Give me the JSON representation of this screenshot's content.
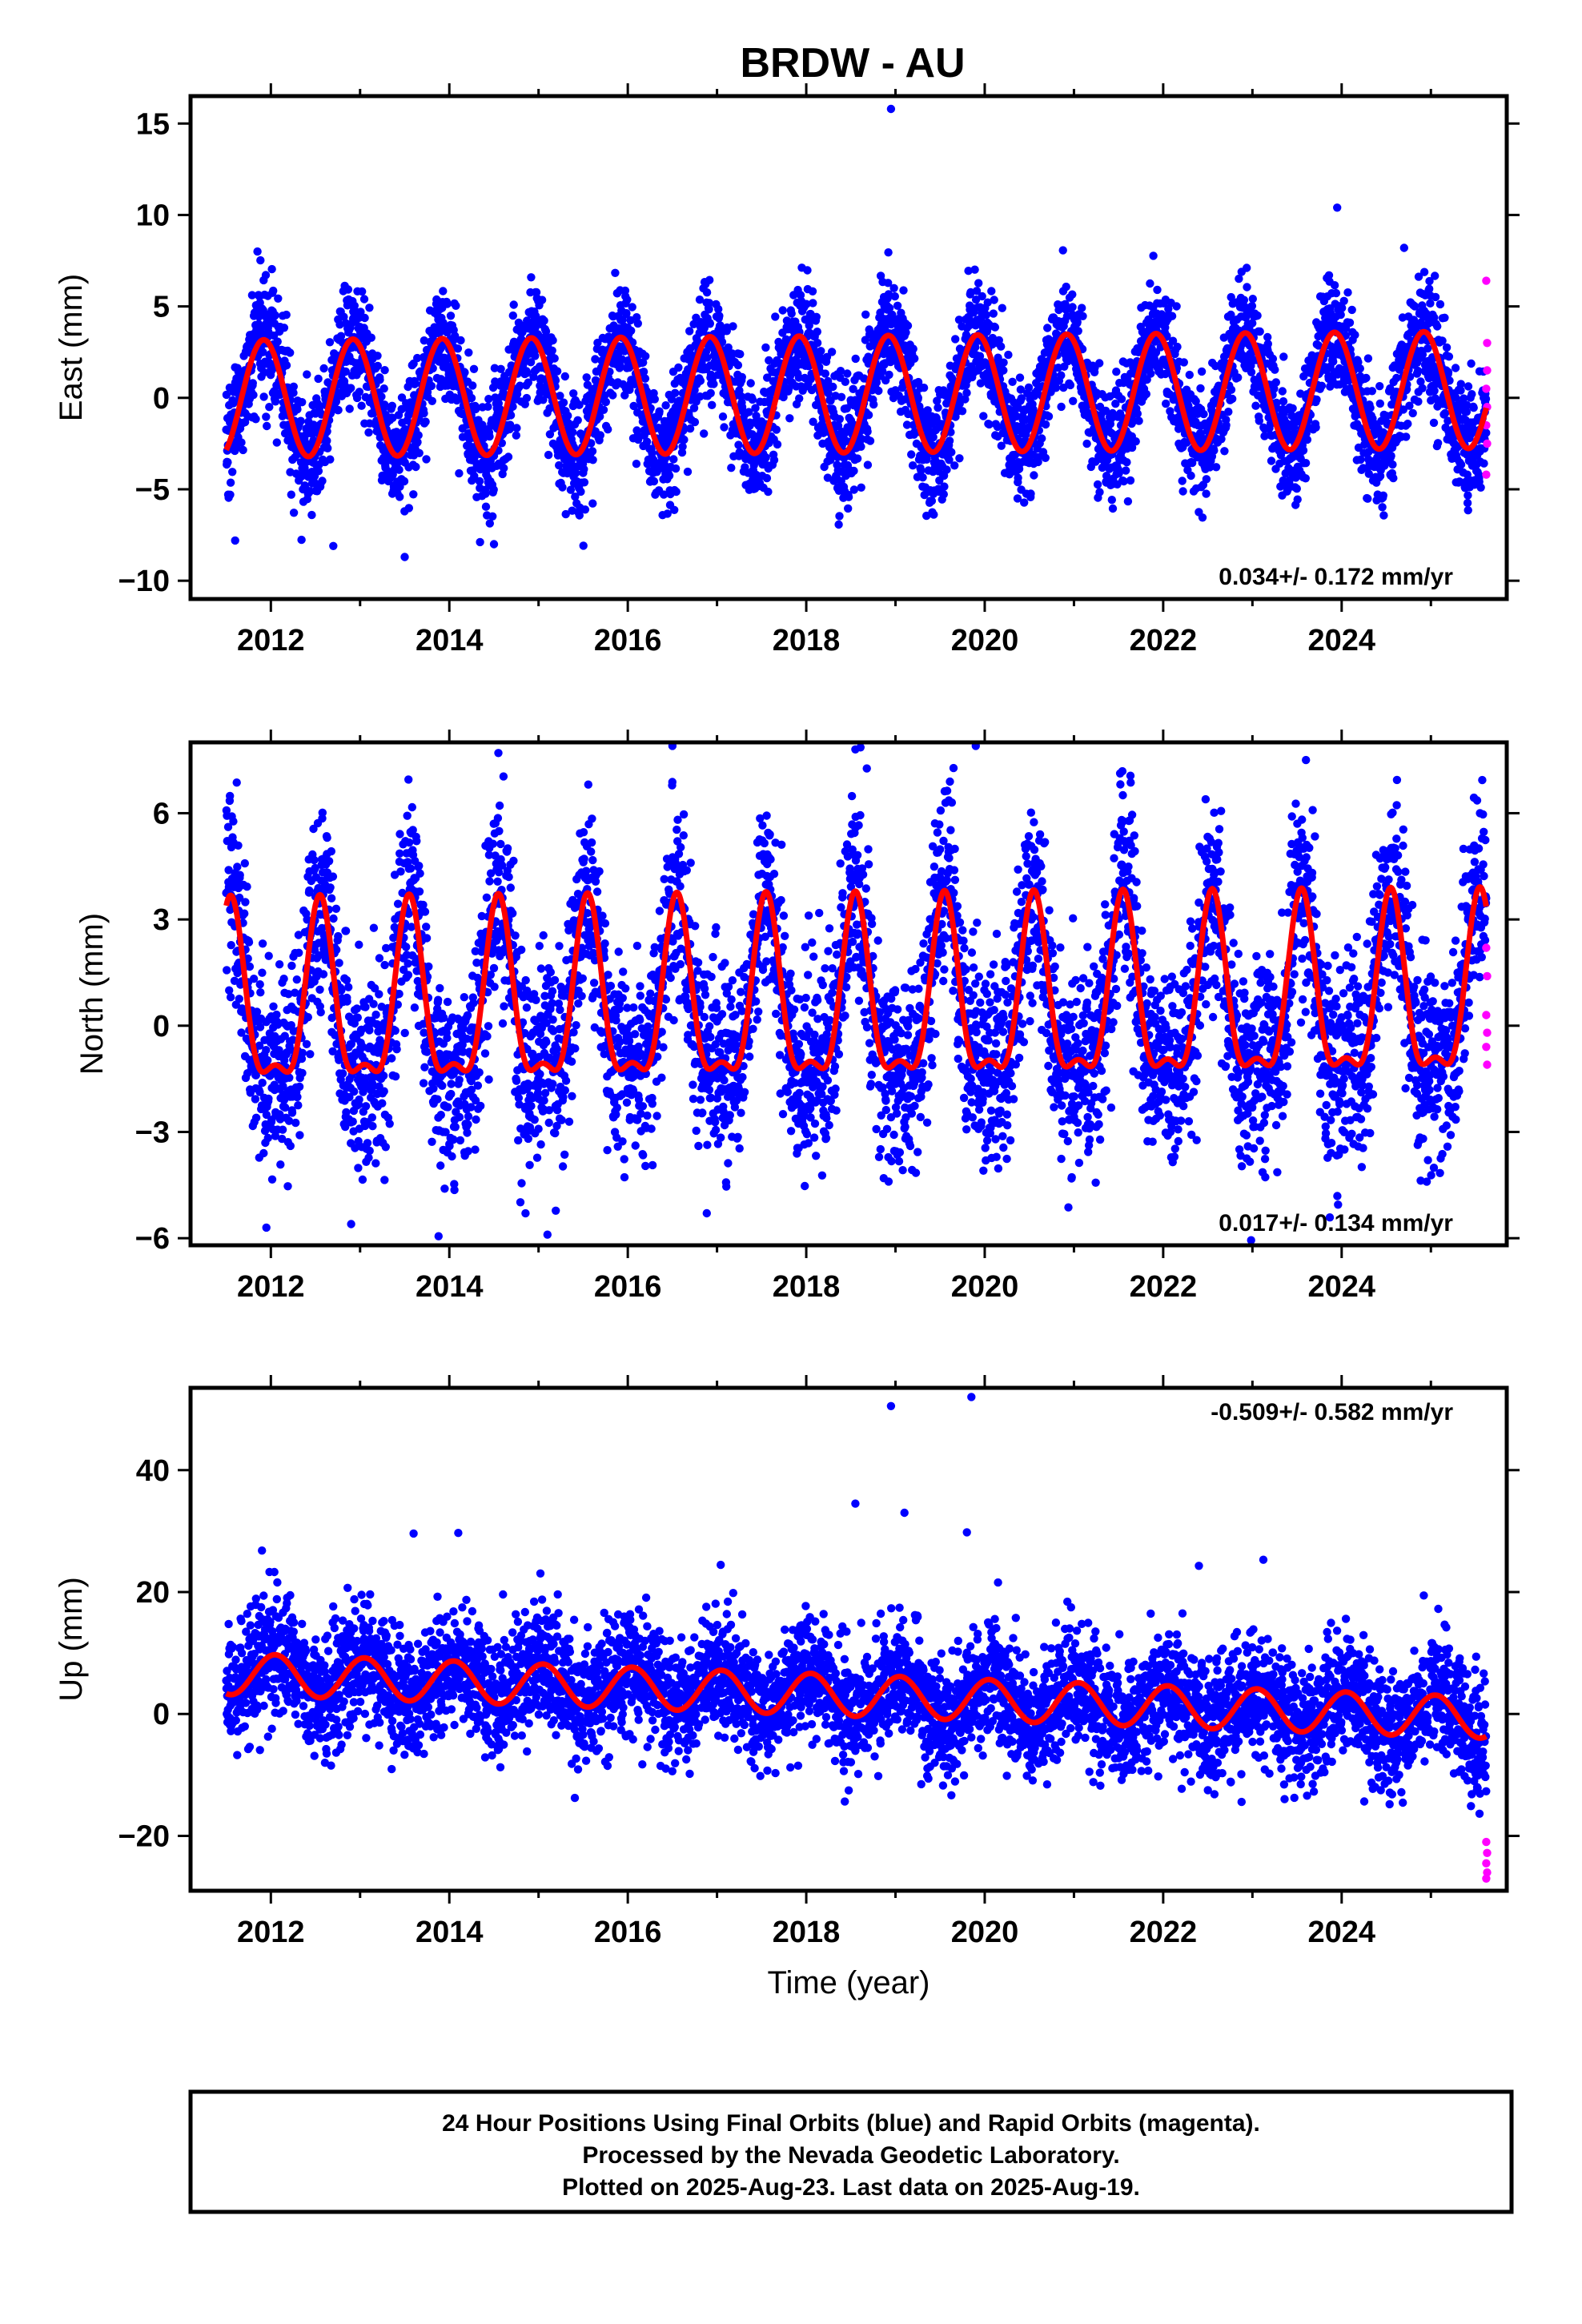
{
  "title": "BRDW - AU",
  "colors": {
    "final": "#0000ff",
    "rapid": "#ff00ff",
    "model": "#ff0000",
    "frame": "#000000"
  },
  "caption": {
    "line1": "24 Hour Positions Using Final Orbits (blue) and Rapid Orbits (magenta).",
    "line2": "Processed by the Nevada Geodetic Laboratory.",
    "line3": "Plotted on 2025-Aug-23. Last data on 2025-Aug-19."
  },
  "chart_data": [
    {
      "type": "scatter",
      "component": "east",
      "ylabel": "East (mm)",
      "xlabel": "",
      "xlim": [
        2011.1,
        2025.85
      ],
      "ylim": [
        -11,
        16.5
      ],
      "xticks": [
        2012,
        2014,
        2016,
        2018,
        2020,
        2022,
        2024
      ],
      "yticks": [
        -10,
        -5,
        0,
        5,
        10,
        15
      ],
      "rate_label": "0.034+/- 0.172 mm/yr",
      "model": {
        "amplitude": 3.2,
        "peak_phase": 0.92,
        "semiannual": 0,
        "semiannual_phase": 0,
        "trend": 0.034,
        "offset": 0.2,
        "noise": 1.6,
        "start": 2011.5,
        "end": 2025.62
      },
      "outliers": [
        [
          2011.6,
          -7.8
        ],
        [
          2012.7,
          -8.1
        ],
        [
          2013.5,
          -8.7
        ],
        [
          2014.5,
          -8.0
        ],
        [
          2018.95,
          15.8
        ],
        [
          2023.95,
          10.4
        ],
        [
          2024.7,
          8.2
        ],
        [
          2011.85,
          8.0
        ]
      ],
      "rapid_points": [
        [
          2025.62,
          6.4
        ],
        [
          2025.63,
          3.0
        ],
        [
          2025.63,
          1.5
        ],
        [
          2025.62,
          0.5
        ],
        [
          2025.63,
          -0.5
        ],
        [
          2025.62,
          -1.5
        ],
        [
          2025.63,
          -2.5
        ],
        [
          2025.62,
          -4.2
        ]
      ]
    },
    {
      "type": "scatter",
      "component": "north",
      "ylabel": "North (mm)",
      "xlabel": "",
      "xlim": [
        2011.1,
        2025.85
      ],
      "ylim": [
        -6.2,
        8
      ],
      "xticks": [
        2012,
        2014,
        2016,
        2018,
        2020,
        2022,
        2024
      ],
      "yticks": [
        -6,
        -3,
        0,
        3,
        6
      ],
      "rate_label": "0.017+/- 0.134 mm/yr",
      "model": {
        "amplitude": 2.4,
        "peak_phase": 0.55,
        "semiannual": 0.9,
        "semiannual_phase": 0.05,
        "trend": 0.017,
        "offset": 0.5,
        "noise": 1.4,
        "start": 2011.5,
        "end": 2025.62
      },
      "outliers": [
        [
          2015.1,
          -5.9
        ],
        [
          2014.55,
          7.7
        ],
        [
          2016.5,
          7.9
        ],
        [
          2018.55,
          7.8
        ],
        [
          2019.9,
          7.9
        ],
        [
          2023.6,
          7.5
        ],
        [
          2011.95,
          -5.7
        ],
        [
          2012.9,
          -5.6
        ]
      ],
      "rapid_points": [
        [
          2025.62,
          2.2
        ],
        [
          2025.63,
          1.4
        ],
        [
          2025.62,
          0.3
        ],
        [
          2025.63,
          -0.2
        ],
        [
          2025.62,
          -0.6
        ],
        [
          2025.63,
          -1.1
        ]
      ]
    },
    {
      "type": "scatter",
      "component": "up",
      "ylabel": "Up (mm)",
      "xlabel": "Time (year)",
      "xlim": [
        2011.1,
        2025.85
      ],
      "ylim": [
        -29,
        53.5
      ],
      "xticks": [
        2012,
        2014,
        2016,
        2018,
        2020,
        2022,
        2024
      ],
      "yticks": [
        -20,
        0,
        20,
        40
      ],
      "rate_label": "-0.509+/- 0.582 mm/yr",
      "model": {
        "amplitude": 3.4,
        "peak_phase": 0.05,
        "semiannual": 0,
        "semiannual_phase": 0,
        "trend": -0.509,
        "offset": 3.0,
        "noise": 5.0,
        "start": 2011.5,
        "end": 2025.62
      },
      "outliers": [
        [
          2018.95,
          50.5
        ],
        [
          2019.85,
          52.0
        ],
        [
          2018.55,
          34.5
        ],
        [
          2019.1,
          33.0
        ],
        [
          2019.8,
          29.8
        ],
        [
          2022.4,
          24.3
        ],
        [
          2013.6,
          29.6
        ],
        [
          2014.1,
          29.7
        ],
        [
          2011.9,
          26.8
        ]
      ],
      "rapid_points": [
        [
          2025.62,
          -21.0
        ],
        [
          2025.63,
          -22.8
        ],
        [
          2025.62,
          -24.5
        ],
        [
          2025.63,
          -26.0
        ],
        [
          2025.62,
          -27.0
        ]
      ]
    }
  ]
}
